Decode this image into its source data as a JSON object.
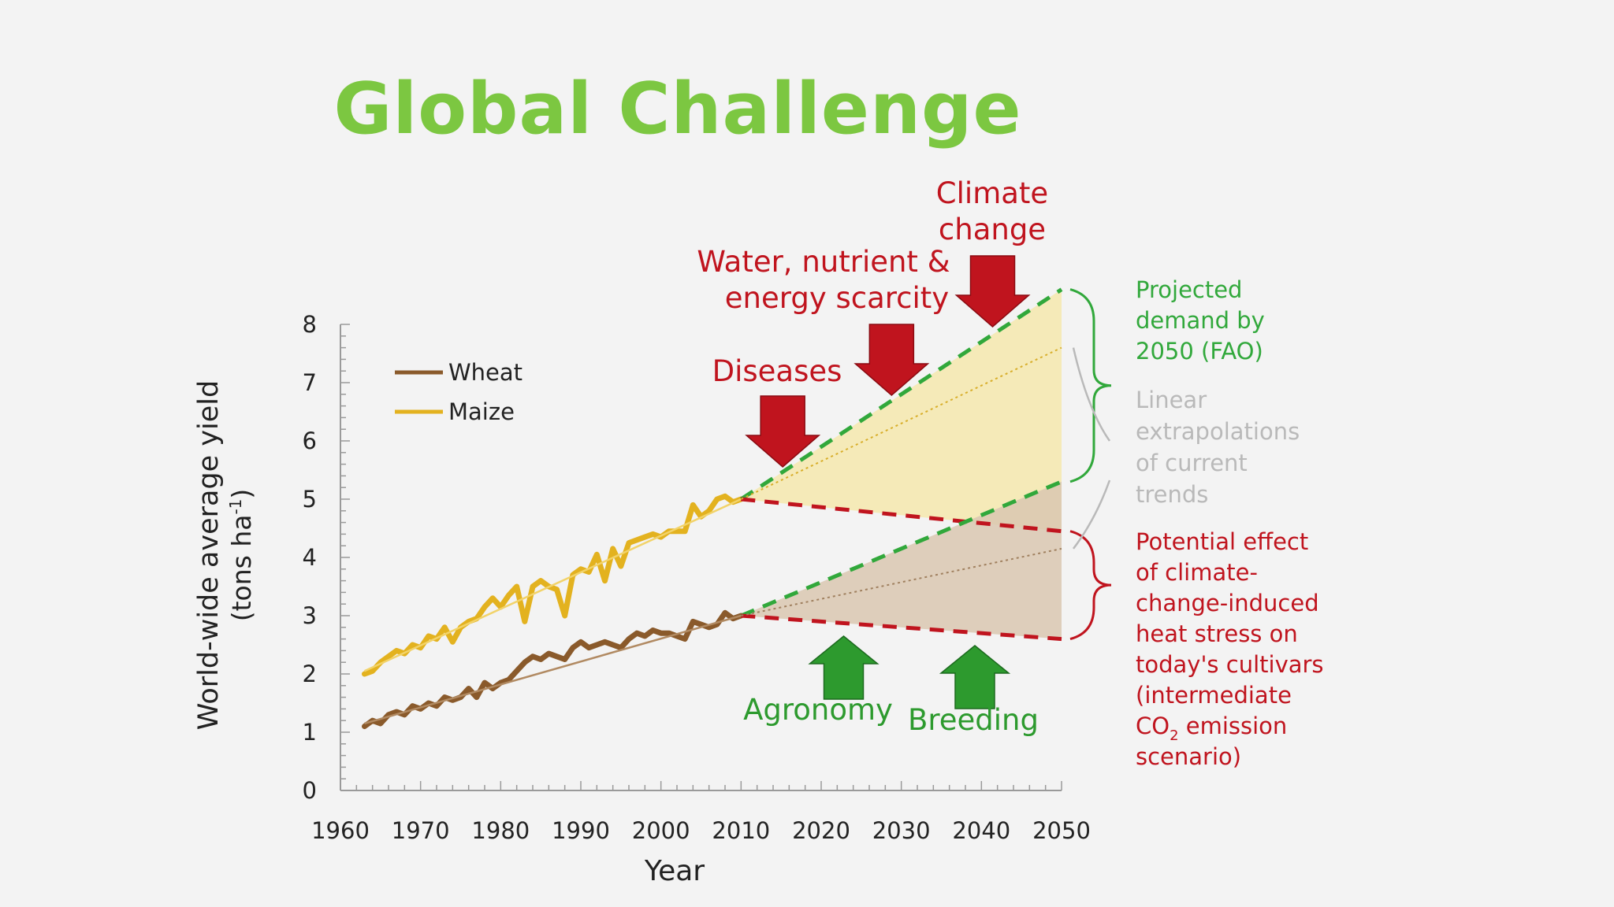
{
  "title": "Global Challenge",
  "colors": {
    "title": "#7cc741",
    "wheat": "#8a5a2b",
    "maize": "#e3b21f",
    "threat": "#c0141e",
    "solution": "#2d9a2e",
    "projected_green": "#31a83b",
    "gray_note": "#b9b9b9",
    "axis": "#9a9a9a",
    "upper_fill": "#f4e7ad",
    "lower_fill": "#d9c7b0"
  },
  "chart_data": {
    "type": "line",
    "xlabel": "Year",
    "ylabel_line1": "World-wide average yield",
    "ylabel_line2_pre": "(tons ha",
    "ylabel_sup": "-1",
    "ylabel_line2_post": ")",
    "xlim": [
      1960,
      2050
    ],
    "ylim": [
      0,
      8
    ],
    "x_ticks": [
      "1960",
      "1970",
      "1980",
      "1990",
      "2000",
      "2010",
      "2020",
      "2030",
      "2040",
      "2050"
    ],
    "y_ticks": [
      "0",
      "1",
      "2",
      "3",
      "4",
      "5",
      "6",
      "7",
      "8"
    ],
    "legend": [
      {
        "key": "wheat",
        "label": "Wheat"
      },
      {
        "key": "maize",
        "label": "Maize"
      }
    ],
    "series": [
      {
        "name": "Wheat",
        "key": "wheat",
        "x": [
          1963,
          1964,
          1965,
          1966,
          1967,
          1968,
          1969,
          1970,
          1971,
          1972,
          1973,
          1974,
          1975,
          1976,
          1977,
          1978,
          1979,
          1980,
          1981,
          1982,
          1983,
          1984,
          1985,
          1986,
          1987,
          1988,
          1989,
          1990,
          1991,
          1992,
          1993,
          1994,
          1995,
          1996,
          1997,
          1998,
          1999,
          2000,
          2001,
          2002,
          2003,
          2004,
          2005,
          2006,
          2007,
          2008,
          2009,
          2010
        ],
        "y": [
          1.1,
          1.2,
          1.15,
          1.3,
          1.35,
          1.3,
          1.45,
          1.4,
          1.5,
          1.45,
          1.6,
          1.55,
          1.6,
          1.75,
          1.6,
          1.85,
          1.75,
          1.85,
          1.9,
          2.05,
          2.2,
          2.3,
          2.25,
          2.35,
          2.3,
          2.25,
          2.45,
          2.55,
          2.45,
          2.5,
          2.55,
          2.5,
          2.45,
          2.6,
          2.7,
          2.65,
          2.75,
          2.7,
          2.7,
          2.65,
          2.6,
          2.9,
          2.85,
          2.8,
          2.85,
          3.05,
          2.95,
          3.0
        ]
      },
      {
        "name": "Maize",
        "key": "maize",
        "x": [
          1963,
          1964,
          1965,
          1966,
          1967,
          1968,
          1969,
          1970,
          1971,
          1972,
          1973,
          1974,
          1975,
          1976,
          1977,
          1978,
          1979,
          1980,
          1981,
          1982,
          1983,
          1984,
          1985,
          1986,
          1987,
          1988,
          1989,
          1990,
          1991,
          1992,
          1993,
          1994,
          1995,
          1996,
          1997,
          1998,
          1999,
          2000,
          2001,
          2002,
          2003,
          2004,
          2005,
          2006,
          2007,
          2008,
          2009,
          2010
        ],
        "y": [
          2.0,
          2.05,
          2.2,
          2.3,
          2.4,
          2.35,
          2.5,
          2.45,
          2.65,
          2.6,
          2.8,
          2.55,
          2.8,
          2.9,
          2.95,
          3.15,
          3.3,
          3.15,
          3.35,
          3.5,
          2.9,
          3.5,
          3.6,
          3.5,
          3.45,
          3.0,
          3.7,
          3.8,
          3.75,
          4.05,
          3.6,
          4.15,
          3.85,
          4.25,
          4.3,
          4.35,
          4.4,
          4.35,
          4.45,
          4.45,
          4.45,
          4.9,
          4.7,
          4.8,
          5.0,
          5.05,
          4.95,
          5.0
        ]
      }
    ],
    "trends": [
      {
        "key": "maize_trend",
        "x": [
          1963,
          2010
        ],
        "y": [
          2.05,
          5.0
        ]
      },
      {
        "key": "wheat_trend",
        "x": [
          1963,
          2010
        ],
        "y": [
          1.15,
          3.0
        ]
      }
    ],
    "projections": {
      "maize": {
        "start": [
          2010,
          5.0
        ],
        "demand_end": 8.6,
        "linear_end": 7.6,
        "heat_end": 4.45
      },
      "wheat": {
        "start": [
          2010,
          3.0
        ],
        "demand_end": 5.3,
        "linear_end": 4.15,
        "heat_end": 2.6
      }
    },
    "threats": [
      {
        "label": "Diseases",
        "x": 2015
      },
      {
        "label_lines": [
          "Water, nutrient &",
          "energy scarcity"
        ],
        "x": 2028
      },
      {
        "label_lines": [
          "Climate",
          "change"
        ],
        "x": 2041
      }
    ],
    "solutions": [
      {
        "label": "Agronomy",
        "x": 2023
      },
      {
        "label": "Breeding",
        "x": 2038
      }
    ],
    "annotations": {
      "projected": [
        "Projected",
        "demand by",
        "2050 (FAO)"
      ],
      "linear": [
        "Linear",
        "extrapolations",
        "of current",
        "trends"
      ],
      "heat": {
        "lines": [
          "Potential effect",
          "of climate-",
          "change-induced",
          "heat stress on",
          "today's cultivars",
          "(intermediate"
        ],
        "co2_pre": "CO",
        "co2_sub": "2",
        "co2_post": " emission",
        "last": "scenario)"
      }
    }
  }
}
